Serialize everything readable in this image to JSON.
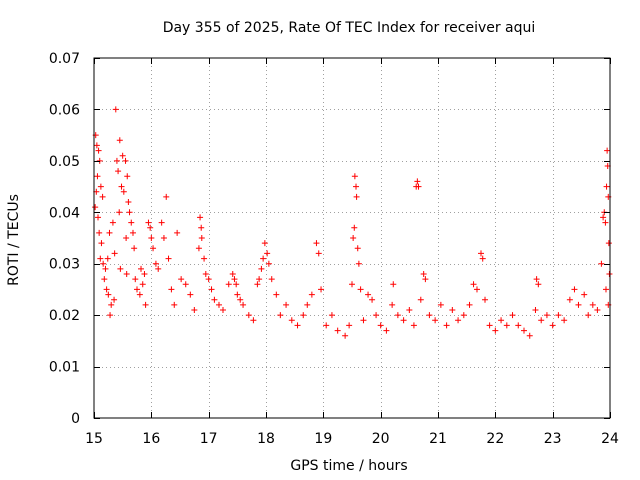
{
  "chart_data": {
    "type": "scatter",
    "title": "Day 355 of 2025, Rate Of TEC Index for receiver aqui",
    "xlabel": "GPS time / hours",
    "ylabel": "ROTI / TECUs",
    "xlim": [
      15,
      24
    ],
    "ylim": [
      0,
      0.07
    ],
    "xticks": [
      15,
      16,
      17,
      18,
      19,
      20,
      21,
      22,
      23,
      24
    ],
    "yticks": [
      0,
      0.01,
      0.02,
      0.03,
      0.04,
      0.05,
      0.06,
      0.07
    ],
    "ytick_labels": [
      "0",
      "0.01",
      "0.02",
      "0.03",
      "0.04",
      "0.05",
      "0.06",
      "0.07"
    ],
    "grid": true,
    "marker": "+",
    "color": "#ff0000",
    "series": [
      {
        "points": [
          [
            15.03,
            0.055
          ],
          [
            15.05,
            0.053
          ],
          [
            15.08,
            0.052
          ],
          [
            15.1,
            0.05
          ],
          [
            15.06,
            0.047
          ],
          [
            15.12,
            0.045
          ],
          [
            15.04,
            0.044
          ],
          [
            15.15,
            0.043
          ],
          [
            15.02,
            0.041
          ],
          [
            15.07,
            0.039
          ],
          [
            15.09,
            0.036
          ],
          [
            15.13,
            0.034
          ],
          [
            15.11,
            0.031
          ],
          [
            15.16,
            0.03
          ],
          [
            15.2,
            0.029
          ],
          [
            15.18,
            0.027
          ],
          [
            15.22,
            0.025
          ],
          [
            15.25,
            0.024
          ],
          [
            15.3,
            0.022
          ],
          [
            15.35,
            0.023
          ],
          [
            15.28,
            0.02
          ],
          [
            15.38,
            0.06
          ],
          [
            15.45,
            0.054
          ],
          [
            15.5,
            0.051
          ],
          [
            15.4,
            0.05
          ],
          [
            15.42,
            0.048
          ],
          [
            15.55,
            0.05
          ],
          [
            15.58,
            0.047
          ],
          [
            15.48,
            0.045
          ],
          [
            15.52,
            0.044
          ],
          [
            15.6,
            0.042
          ],
          [
            15.62,
            0.04
          ],
          [
            15.44,
            0.04
          ],
          [
            15.65,
            0.038
          ],
          [
            15.68,
            0.036
          ],
          [
            15.56,
            0.035
          ],
          [
            15.7,
            0.033
          ],
          [
            15.33,
            0.038
          ],
          [
            15.27,
            0.036
          ],
          [
            15.36,
            0.032
          ],
          [
            15.24,
            0.031
          ],
          [
            15.46,
            0.029
          ],
          [
            15.57,
            0.028
          ],
          [
            15.72,
            0.027
          ],
          [
            15.75,
            0.025
          ],
          [
            15.8,
            0.024
          ],
          [
            15.85,
            0.026
          ],
          [
            15.9,
            0.022
          ],
          [
            15.82,
            0.029
          ],
          [
            15.88,
            0.028
          ],
          [
            15.95,
            0.038
          ],
          [
            15.98,
            0.037
          ],
          [
            16.0,
            0.035
          ],
          [
            16.03,
            0.033
          ],
          [
            16.08,
            0.03
          ],
          [
            16.12,
            0.029
          ],
          [
            16.18,
            0.038
          ],
          [
            16.22,
            0.035
          ],
          [
            16.26,
            0.043
          ],
          [
            16.3,
            0.031
          ],
          [
            16.35,
            0.025
          ],
          [
            16.4,
            0.022
          ],
          [
            16.45,
            0.036
          ],
          [
            16.52,
            0.027
          ],
          [
            16.6,
            0.026
          ],
          [
            16.68,
            0.024
          ],
          [
            16.75,
            0.021
          ],
          [
            16.85,
            0.039
          ],
          [
            16.87,
            0.037
          ],
          [
            16.88,
            0.035
          ],
          [
            16.83,
            0.033
          ],
          [
            16.92,
            0.031
          ],
          [
            16.95,
            0.028
          ],
          [
            17.0,
            0.027
          ],
          [
            17.05,
            0.025
          ],
          [
            17.1,
            0.023
          ],
          [
            17.18,
            0.022
          ],
          [
            17.25,
            0.021
          ],
          [
            17.35,
            0.026
          ],
          [
            17.42,
            0.028
          ],
          [
            17.45,
            0.027
          ],
          [
            17.48,
            0.026
          ],
          [
            17.5,
            0.024
          ],
          [
            17.55,
            0.023
          ],
          [
            17.6,
            0.022
          ],
          [
            17.7,
            0.02
          ],
          [
            17.78,
            0.019
          ],
          [
            17.85,
            0.026
          ],
          [
            17.88,
            0.027
          ],
          [
            17.92,
            0.029
          ],
          [
            17.95,
            0.031
          ],
          [
            17.98,
            0.034
          ],
          [
            18.02,
            0.032
          ],
          [
            18.05,
            0.03
          ],
          [
            18.1,
            0.027
          ],
          [
            18.18,
            0.024
          ],
          [
            18.25,
            0.02
          ],
          [
            18.35,
            0.022
          ],
          [
            18.45,
            0.019
          ],
          [
            18.55,
            0.018
          ],
          [
            18.65,
            0.02
          ],
          [
            18.72,
            0.022
          ],
          [
            18.8,
            0.024
          ],
          [
            18.88,
            0.034
          ],
          [
            18.92,
            0.032
          ],
          [
            18.96,
            0.025
          ],
          [
            19.05,
            0.018
          ],
          [
            19.15,
            0.02
          ],
          [
            19.25,
            0.017
          ],
          [
            19.38,
            0.016
          ],
          [
            19.45,
            0.018
          ],
          [
            19.5,
            0.026
          ],
          [
            19.52,
            0.035
          ],
          [
            19.54,
            0.037
          ],
          [
            19.55,
            0.047
          ],
          [
            19.57,
            0.045
          ],
          [
            19.58,
            0.043
          ],
          [
            19.6,
            0.033
          ],
          [
            19.62,
            0.03
          ],
          [
            19.65,
            0.025
          ],
          [
            19.7,
            0.019
          ],
          [
            19.78,
            0.024
          ],
          [
            19.85,
            0.023
          ],
          [
            19.92,
            0.02
          ],
          [
            20.0,
            0.018
          ],
          [
            20.1,
            0.017
          ],
          [
            20.2,
            0.022
          ],
          [
            20.22,
            0.026
          ],
          [
            20.3,
            0.02
          ],
          [
            20.4,
            0.019
          ],
          [
            20.5,
            0.021
          ],
          [
            20.58,
            0.018
          ],
          [
            20.62,
            0.045
          ],
          [
            20.64,
            0.046
          ],
          [
            20.66,
            0.045
          ],
          [
            20.7,
            0.023
          ],
          [
            20.75,
            0.028
          ],
          [
            20.78,
            0.027
          ],
          [
            20.85,
            0.02
          ],
          [
            20.95,
            0.019
          ],
          [
            21.05,
            0.022
          ],
          [
            21.15,
            0.018
          ],
          [
            21.25,
            0.021
          ],
          [
            21.35,
            0.019
          ],
          [
            21.45,
            0.02
          ],
          [
            21.55,
            0.022
          ],
          [
            21.62,
            0.026
          ],
          [
            21.68,
            0.025
          ],
          [
            21.75,
            0.032
          ],
          [
            21.78,
            0.031
          ],
          [
            21.82,
            0.023
          ],
          [
            21.9,
            0.018
          ],
          [
            22.0,
            0.017
          ],
          [
            22.1,
            0.019
          ],
          [
            22.2,
            0.018
          ],
          [
            22.3,
            0.02
          ],
          [
            22.4,
            0.018
          ],
          [
            22.5,
            0.017
          ],
          [
            22.6,
            0.016
          ],
          [
            22.7,
            0.021
          ],
          [
            22.72,
            0.027
          ],
          [
            22.75,
            0.026
          ],
          [
            22.8,
            0.019
          ],
          [
            22.9,
            0.02
          ],
          [
            23.0,
            0.018
          ],
          [
            23.1,
            0.02
          ],
          [
            23.2,
            0.019
          ],
          [
            23.3,
            0.023
          ],
          [
            23.38,
            0.025
          ],
          [
            23.45,
            0.022
          ],
          [
            23.55,
            0.024
          ],
          [
            23.62,
            0.02
          ],
          [
            23.7,
            0.022
          ],
          [
            23.78,
            0.021
          ],
          [
            23.85,
            0.03
          ],
          [
            23.88,
            0.039
          ],
          [
            23.9,
            0.04
          ],
          [
            23.92,
            0.038
          ],
          [
            23.94,
            0.045
          ],
          [
            23.95,
            0.052
          ],
          [
            23.96,
            0.049
          ],
          [
            23.97,
            0.043
          ],
          [
            23.98,
            0.034
          ],
          [
            23.99,
            0.028
          ],
          [
            23.93,
            0.025
          ],
          [
            23.97,
            0.022
          ]
        ]
      }
    ]
  }
}
